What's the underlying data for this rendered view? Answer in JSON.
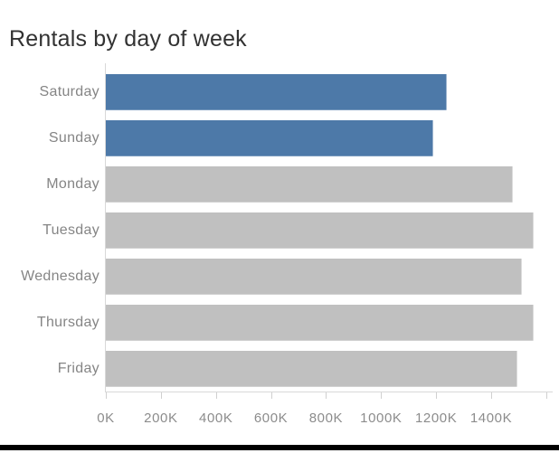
{
  "title": "Rentals by day of week",
  "window": {
    "background": "#ffffff",
    "bottom_edge_color": "#000000"
  },
  "colors": {
    "title_text": "#323232",
    "category_text": "#858585",
    "tick_text": "#8c8c8c",
    "axis_line": "#d8d8d8",
    "tick_mark": "#d0d0d0",
    "highlight_bar": "#4d79a8",
    "default_bar": "#c0c0c0"
  },
  "chart_data": {
    "type": "bar",
    "orientation": "horizontal",
    "title": "Rentals by day of week",
    "categories": [
      "Saturday",
      "Sunday",
      "Monday",
      "Tuesday",
      "Wednesday",
      "Thursday",
      "Friday"
    ],
    "values": [
      1240000,
      1190000,
      1480000,
      1555000,
      1510000,
      1555000,
      1495000
    ],
    "bar_colors": [
      "#4d79a8",
      "#4d79a8",
      "#c0c0c0",
      "#c0c0c0",
      "#c0c0c0",
      "#c0c0c0",
      "#c0c0c0"
    ],
    "highlighted_categories": [
      "Saturday",
      "Sunday"
    ],
    "xlabel": "",
    "ylabel": "",
    "grid": false,
    "legend": null,
    "x_axis": {
      "min": 0,
      "max": 1620000,
      "ticks": [
        {
          "value": 0,
          "label": "0K"
        },
        {
          "value": 200000,
          "label": "200K"
        },
        {
          "value": 400000,
          "label": "400K"
        },
        {
          "value": 600000,
          "label": "600K"
        },
        {
          "value": 800000,
          "label": "800K"
        },
        {
          "value": 1000000,
          "label": "1000K"
        },
        {
          "value": 1200000,
          "label": "1200K"
        },
        {
          "value": 1400000,
          "label": "1400K"
        },
        {
          "value": 1600000,
          "label": ""
        }
      ]
    }
  }
}
